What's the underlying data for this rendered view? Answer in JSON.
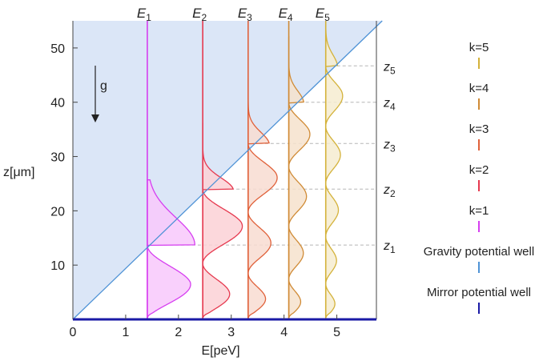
{
  "chart_data": {
    "type": "line",
    "xlabel": "E[peV]",
    "ylabel": "z[μm]",
    "xlim": [
      0,
      5.75
    ],
    "ylim": [
      0,
      55
    ],
    "xticks": [
      "0",
      "1",
      "2",
      "3",
      "4",
      "5"
    ],
    "yticks": [
      "10",
      "20",
      "30",
      "40",
      "50"
    ],
    "gravity_line": {
      "from": [
        0,
        0
      ],
      "to": [
        5.86,
        55
      ]
    },
    "gravity_label": "g",
    "energy_levels": [
      {
        "k": 1,
        "label": "E",
        "sub": "1",
        "E": 1.41,
        "turning_z": 13.7,
        "color": "#d63ef0",
        "fill": "#f8c8fb",
        "zlabel": "z",
        "zsub": "1"
      },
      {
        "k": 2,
        "label": "E",
        "sub": "2",
        "E": 2.46,
        "turning_z": 24.0,
        "color": "#e6394f",
        "fill": "#fbd1d6",
        "zlabel": "z",
        "zsub": "2"
      },
      {
        "k": 3,
        "label": "E",
        "sub": "3",
        "E": 3.32,
        "turning_z": 32.4,
        "color": "#e0613a",
        "fill": "#f8dcd1",
        "zlabel": "z",
        "zsub": "3"
      },
      {
        "k": 4,
        "label": "E",
        "sub": "4",
        "E": 4.09,
        "turning_z": 40.0,
        "color": "#d08b36",
        "fill": "#f6e2cd",
        "zlabel": "z",
        "zsub": "4"
      },
      {
        "k": 5,
        "label": "E",
        "sub": "5",
        "E": 4.79,
        "turning_z": 46.7,
        "color": "#d4b23a",
        "fill": "#f6ecd0",
        "zlabel": "z",
        "zsub": "5"
      }
    ],
    "legend": {
      "placement": "right",
      "entries": [
        {
          "label": "k=5",
          "color": "#d4b23a"
        },
        {
          "label": "k=4",
          "color": "#d08b36"
        },
        {
          "label": "k=3",
          "color": "#e0613a"
        },
        {
          "label": "k=2",
          "color": "#e6394f"
        },
        {
          "label": "k=1",
          "color": "#d63ef0"
        },
        {
          "label": "Gravity potential well",
          "color": "#4f93d6"
        },
        {
          "label": "Mirror potential well",
          "color": "#1a1aa6"
        }
      ]
    },
    "colors": {
      "gravity_region": "#dbe6f7",
      "gravity_line": "#4f93d6",
      "mirror": "#1a1aa6",
      "grid": "#b5b5b5"
    }
  }
}
